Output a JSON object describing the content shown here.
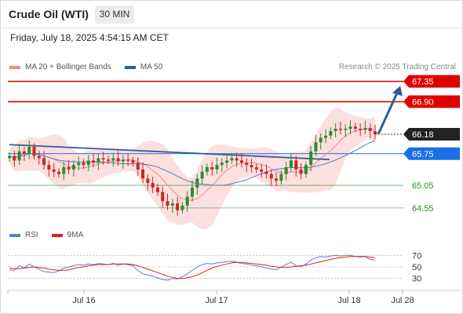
{
  "header": {
    "title": "Crude Oil (WTI)",
    "timeframe": "30 MIN",
    "datetime": "Friday, July 18, 2025 4:54:15 AM CET"
  },
  "legend": {
    "items": [
      {
        "label": "MA 20 + Bollinger Bands",
        "color": "#f08a8a"
      },
      {
        "label": "MA 50",
        "color": "#2e5c9e"
      }
    ],
    "credit": "Research © 2025 Trading Central"
  },
  "rsi_legend": {
    "items": [
      {
        "label": "RSI",
        "color": "#5b7bd5"
      },
      {
        "label": "9MA",
        "color": "#e02020"
      }
    ]
  },
  "chart_data": {
    "type": "candlestick",
    "ylim": [
      64.2,
      67.5
    ],
    "x_axis_labels": [
      "Jul 16",
      "Jul 17",
      "Jul 18",
      "Jul 28"
    ],
    "current_price": {
      "value": 66.18,
      "label": "66.18"
    },
    "levels": [
      {
        "value": 67.35,
        "label": "67.35",
        "kind": "resistance",
        "color": "#e00000"
      },
      {
        "value": 66.9,
        "label": "66.90",
        "kind": "resistance",
        "color": "#e00000"
      },
      {
        "value": 65.75,
        "label": "65.75",
        "kind": "pivot",
        "color": "#1a6ee8"
      },
      {
        "value": 65.05,
        "label": "65.05",
        "kind": "support",
        "color": "#2e8b2e"
      },
      {
        "value": 64.55,
        "label": "64.55",
        "kind": "support",
        "color": "#2e8b2e"
      }
    ],
    "arrow": {
      "from": 66.18,
      "to": 67.25,
      "direction": "up",
      "color": "#2e5c9e"
    },
    "trendline": {
      "from": 65.95,
      "to": 65.62,
      "color": "#2e5c9e"
    },
    "closes": [
      65.7,
      65.6,
      65.8,
      65.75,
      65.9,
      65.7,
      65.65,
      65.5,
      65.4,
      65.35,
      65.3,
      65.45,
      65.4,
      65.5,
      65.55,
      65.5,
      65.6,
      65.55,
      65.65,
      65.62,
      65.6,
      65.65,
      65.58,
      65.62,
      65.6,
      65.55,
      65.4,
      65.2,
      65.1,
      65.0,
      64.9,
      64.7,
      64.6,
      64.65,
      64.5,
      64.6,
      64.8,
      65.0,
      65.2,
      65.35,
      65.45,
      65.4,
      65.5,
      65.55,
      65.6,
      65.65,
      65.6,
      65.55,
      65.5,
      65.45,
      65.4,
      65.35,
      65.3,
      65.2,
      65.15,
      65.3,
      65.45,
      65.6,
      65.4,
      65.3,
      65.5,
      65.8,
      66.0,
      66.1,
      66.15,
      66.25,
      66.3,
      66.28,
      66.3,
      66.35,
      66.3,
      66.28,
      66.32,
      66.25,
      66.18
    ],
    "rsi": {
      "levels": [
        70,
        50,
        30
      ],
      "ylim": [
        20,
        80
      ],
      "rsi_values": [
        45,
        44,
        52,
        48,
        55,
        50,
        46,
        42,
        41,
        40,
        43,
        48,
        50,
        52,
        54,
        53,
        55,
        54,
        56,
        55,
        54,
        56,
        53,
        55,
        54,
        52,
        44,
        38,
        36,
        34,
        31,
        28,
        27,
        30,
        29,
        33,
        38,
        44,
        50,
        54,
        56,
        55,
        57,
        58,
        59,
        60,
        58,
        56,
        55,
        53,
        52,
        50,
        48,
        46,
        45,
        50,
        54,
        58,
        52,
        50,
        55,
        62,
        66,
        68,
        67,
        69,
        70,
        69,
        70,
        70,
        68,
        67,
        68,
        63,
        62
      ],
      "ma_values": [
        48,
        47,
        47,
        48,
        49,
        50,
        49,
        48,
        46,
        45,
        44,
        44,
        45,
        47,
        49,
        50,
        52,
        53,
        54,
        54,
        54,
        55,
        55,
        55,
        55,
        54,
        52,
        49,
        46,
        43,
        40,
        37,
        34,
        32,
        30,
        30,
        31,
        33,
        36,
        40,
        44,
        48,
        51,
        53,
        55,
        57,
        58,
        58,
        57,
        56,
        55,
        54,
        53,
        51,
        50,
        49,
        49,
        50,
        51,
        52,
        53,
        55,
        57,
        59,
        61,
        63,
        65,
        66,
        67,
        68,
        68,
        68,
        68,
        67,
        66
      ],
      "tick_labels": [
        "70",
        "50",
        "30"
      ]
    }
  }
}
